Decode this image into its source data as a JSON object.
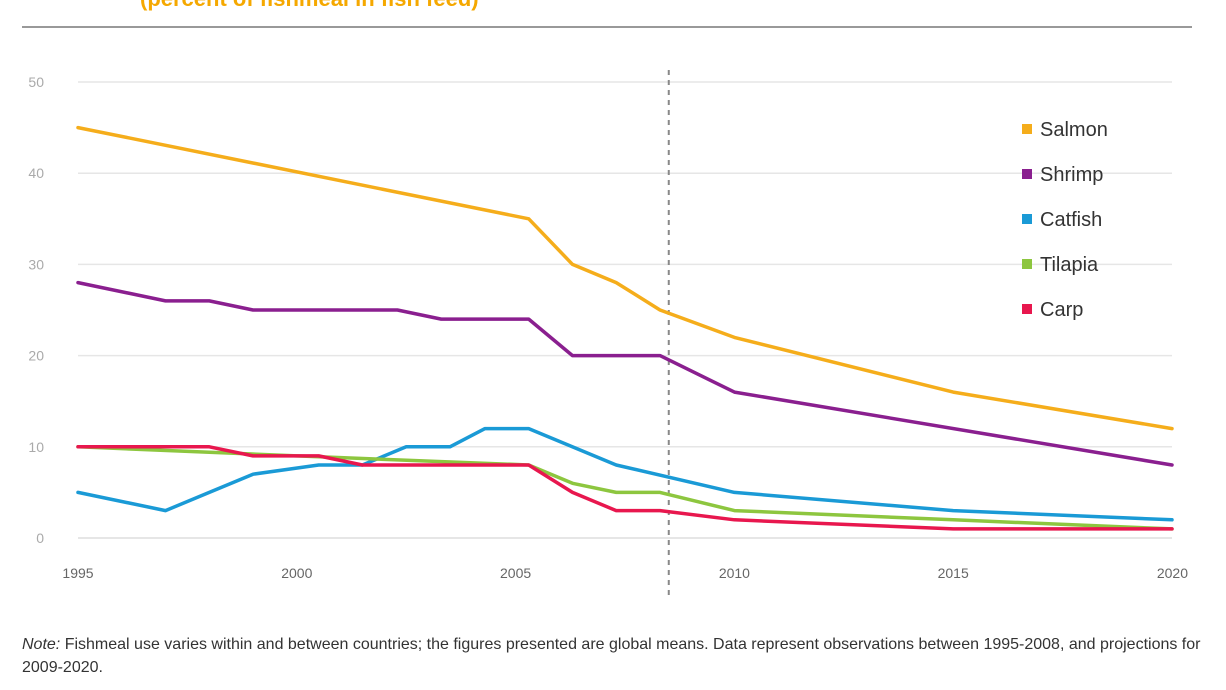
{
  "chart_data": {
    "type": "line",
    "title": "(percent of fishmeal in fish feed)",
    "xlabel": "",
    "ylabel": "",
    "xlim": [
      1995,
      2020
    ],
    "ylim": [
      0,
      50
    ],
    "yticks": [
      0,
      10,
      20,
      30,
      40,
      50
    ],
    "xticks": [
      1995,
      2000,
      2005,
      2010,
      2015,
      2020
    ],
    "grid": true,
    "divider_x": 2008.5,
    "legend_position": "top-right",
    "series": [
      {
        "name": "Salmon",
        "color": "#f5ad1b",
        "x": [
          1995,
          2005.3,
          2006.3,
          2007.3,
          2008.3,
          2010,
          2015,
          2020
        ],
        "y": [
          45,
          35,
          30,
          28,
          25,
          22,
          16,
          12
        ]
      },
      {
        "name": "Shrimp",
        "color": "#8a1f8f",
        "x": [
          1995,
          1997,
          1998,
          1999,
          2002.3,
          2003.3,
          2005.3,
          2006.3,
          2008.3,
          2010,
          2020
        ],
        "y": [
          28,
          26,
          26,
          25,
          25,
          24,
          24,
          20,
          20,
          16,
          8
        ]
      },
      {
        "name": "Catfish",
        "color": "#1a9ad6",
        "x": [
          1995,
          1997,
          1998,
          1999,
          2000.5,
          2001.5,
          2002.5,
          2003.5,
          2004.3,
          2005.3,
          2007.3,
          2010,
          2015,
          2020
        ],
        "y": [
          5,
          3,
          5,
          7,
          8,
          8,
          10,
          10,
          12,
          12,
          8,
          5,
          3,
          2
        ]
      },
      {
        "name": "Tilapia",
        "color": "#8dc63f",
        "x": [
          1995,
          2000,
          2005.3,
          2006.3,
          2007.3,
          2008.3,
          2010,
          2015,
          2020
        ],
        "y": [
          10,
          9,
          8,
          6,
          5,
          5,
          3,
          2,
          1
        ]
      },
      {
        "name": "Carp",
        "color": "#e8174e",
        "x": [
          1995,
          1998,
          1999,
          2000.5,
          2001.5,
          2002.5,
          2005.3,
          2006.3,
          2007.3,
          2008.3,
          2010,
          2015,
          2020
        ],
        "y": [
          10,
          10,
          9,
          9,
          8,
          8,
          8,
          5,
          3,
          3,
          2,
          1,
          1
        ]
      }
    ]
  },
  "note": {
    "lead": "Note:",
    "text": "  Fishmeal use varies within and between countries; the figures presented are global means. Data represent observations between 1995-2008, and projections for 2009-2020."
  }
}
